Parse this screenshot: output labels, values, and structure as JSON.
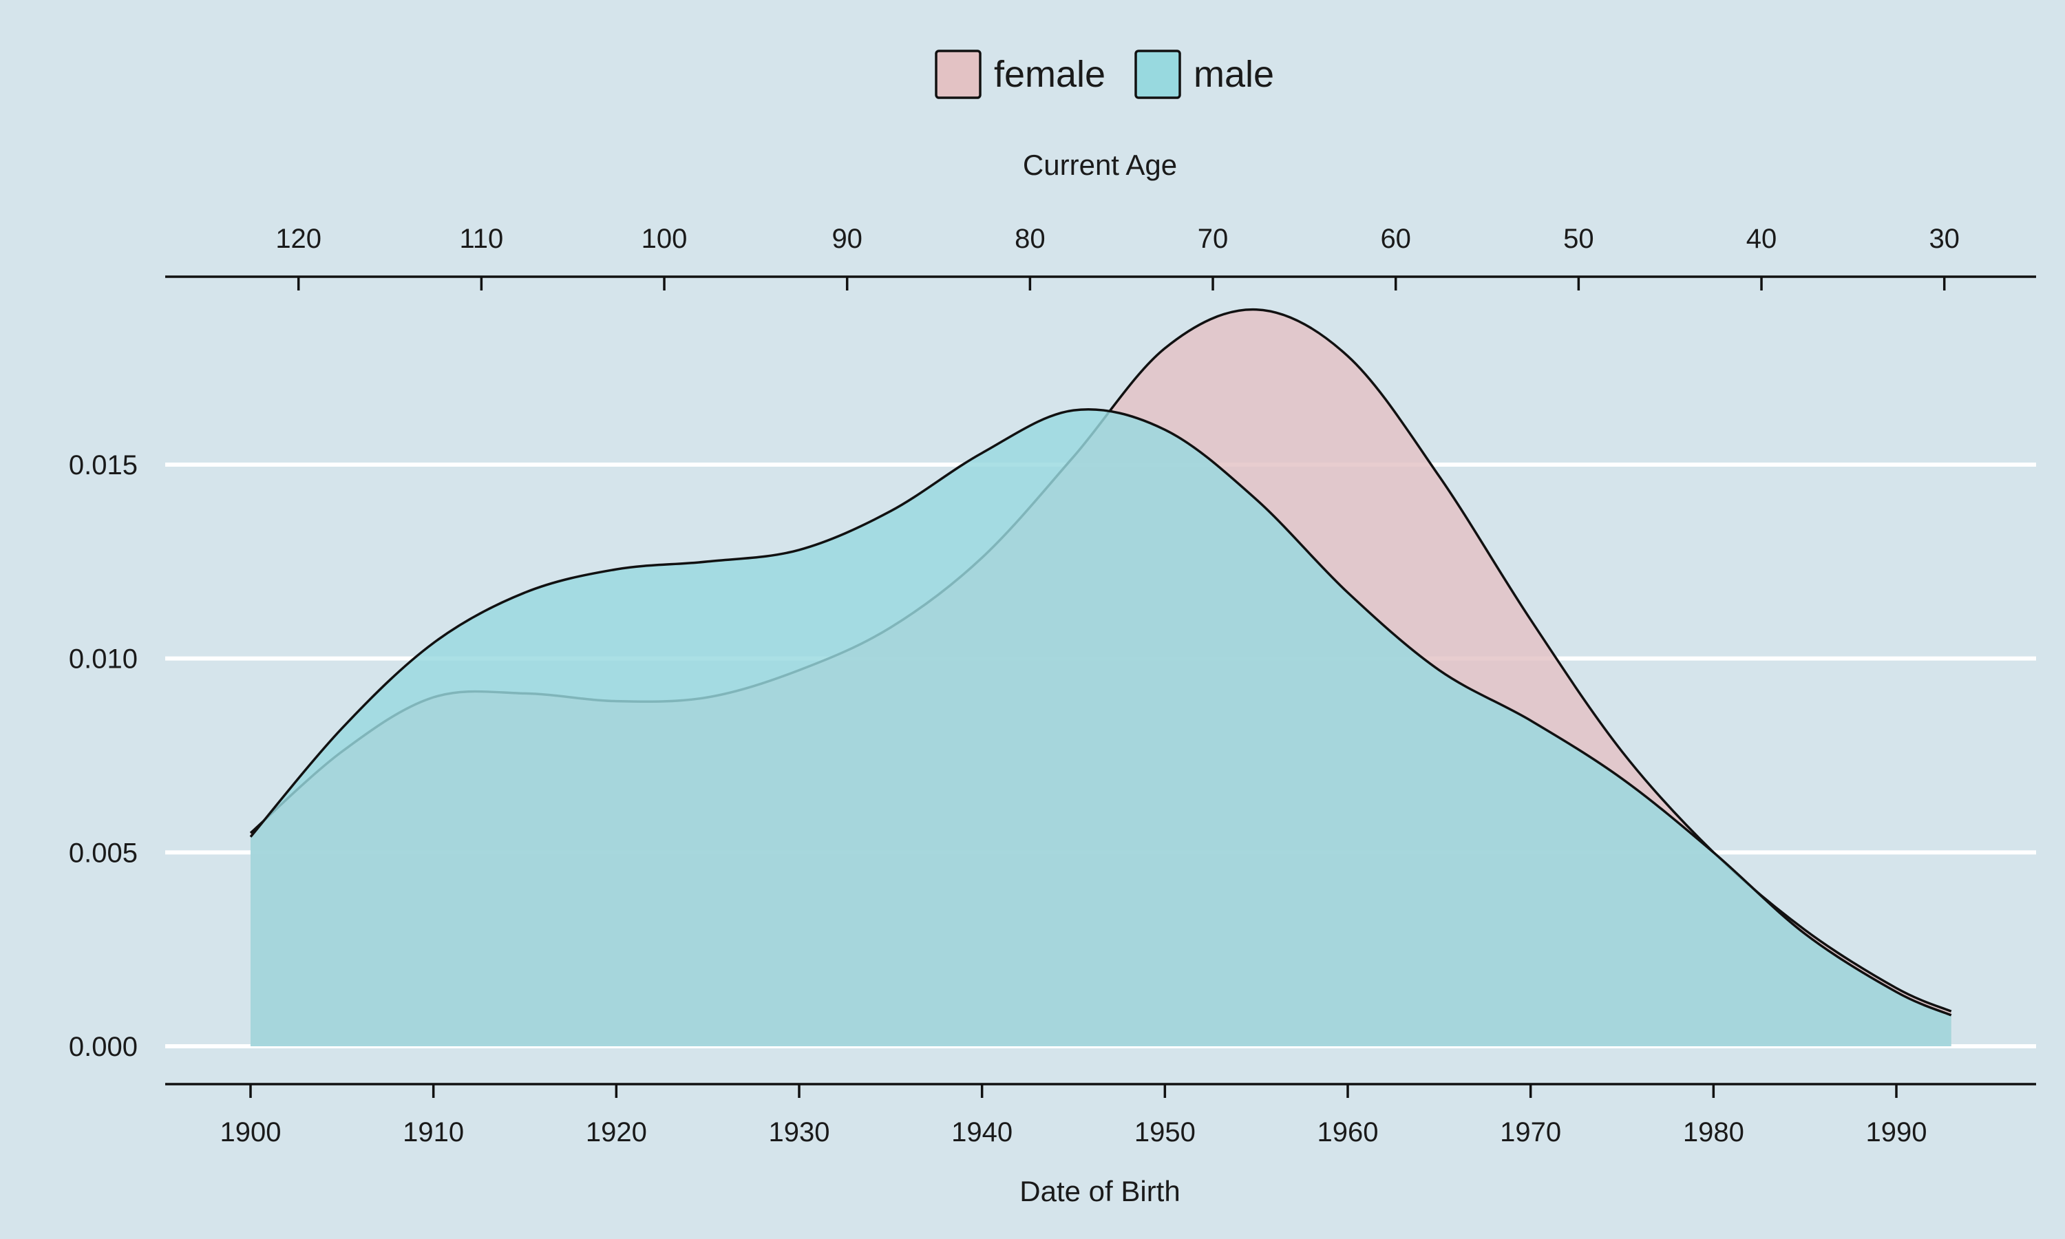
{
  "chart_data": {
    "type": "area",
    "background": "#d5e4eb",
    "legend": {
      "placement": "top",
      "entries": [
        {
          "label": "female",
          "color": "#e3c2c4"
        },
        {
          "label": "male",
          "color": "#98d9df"
        }
      ]
    },
    "x_axis": {
      "title": "Date of Birth",
      "ticks": [
        "1900",
        "1910",
        "1920",
        "1930",
        "1940",
        "1950",
        "1960",
        "1970",
        "1980",
        "1990"
      ],
      "range": [
        1895.3,
        1997.5
      ]
    },
    "secondary_x_axis": {
      "title": "Current Age",
      "ticks": [
        "120",
        "110",
        "100",
        "90",
        "80",
        "70",
        "60",
        "50",
        "40",
        "30"
      ],
      "position": "top"
    },
    "y_axis": {
      "ticks": [
        "0.000",
        "0.005",
        "0.010",
        "0.015"
      ],
      "range": [
        -0.001,
        0.02
      ],
      "grid": true
    },
    "series": [
      {
        "name": "female",
        "color": "#e3c2c4",
        "x": [
          1900,
          1905,
          1910,
          1915,
          1920,
          1925,
          1930,
          1935,
          1940,
          1945,
          1950,
          1955,
          1960,
          1965,
          1970,
          1975,
          1980,
          1985,
          1990,
          1993
        ],
        "y": [
          0.0055,
          0.0076,
          0.009,
          0.0091,
          0.0089,
          0.009,
          0.0097,
          0.0108,
          0.0126,
          0.0152,
          0.018,
          0.019,
          0.0178,
          0.0147,
          0.011,
          0.0076,
          0.005,
          0.003,
          0.0015,
          0.0009
        ]
      },
      {
        "name": "male",
        "color": "#98d9df",
        "x": [
          1900,
          1905,
          1910,
          1915,
          1920,
          1925,
          1930,
          1935,
          1940,
          1945,
          1950,
          1955,
          1960,
          1965,
          1970,
          1975,
          1980,
          1985,
          1990,
          1993
        ],
        "y": [
          0.0054,
          0.0082,
          0.0104,
          0.0117,
          0.0123,
          0.0125,
          0.0128,
          0.0138,
          0.0153,
          0.0164,
          0.0159,
          0.0141,
          0.0117,
          0.0097,
          0.0084,
          0.0069,
          0.005,
          0.0029,
          0.0014,
          0.0008
        ]
      }
    ]
  }
}
